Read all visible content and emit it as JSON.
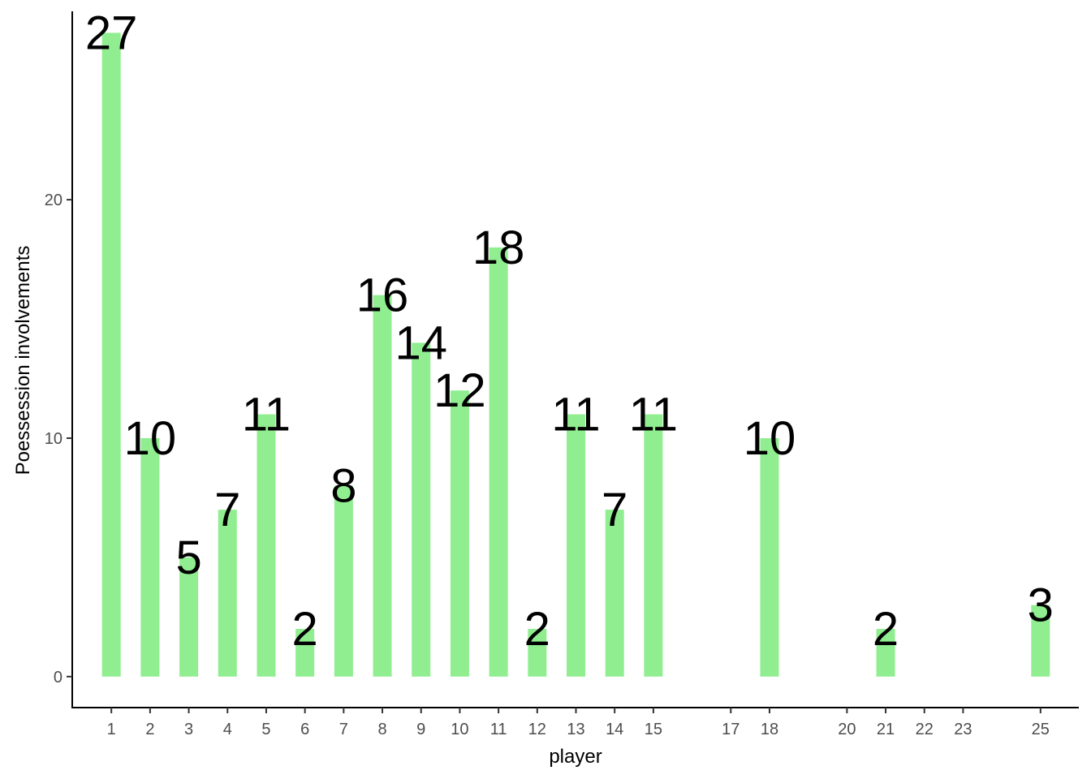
{
  "chart_data": {
    "type": "bar",
    "title": "",
    "xlabel": "player",
    "ylabel": "Poessession involvements",
    "bar_color": "#90EE90",
    "grid": false,
    "legend": "none",
    "xlim": [
      0,
      26
    ],
    "ylim": [
      -1.3,
      27.9
    ],
    "yticks": [
      0,
      10,
      20
    ],
    "x_ticks": [
      1,
      2,
      3,
      4,
      5,
      6,
      7,
      8,
      9,
      10,
      11,
      12,
      13,
      14,
      15,
      17,
      18,
      20,
      21,
      22,
      23,
      25
    ],
    "x": [
      1,
      2,
      3,
      4,
      5,
      6,
      7,
      8,
      9,
      10,
      11,
      12,
      13,
      14,
      15,
      18,
      21,
      25
    ],
    "values": [
      27,
      10,
      5,
      7,
      11,
      2,
      8,
      16,
      14,
      12,
      18,
      2,
      11,
      7,
      11,
      10,
      2,
      3
    ]
  }
}
